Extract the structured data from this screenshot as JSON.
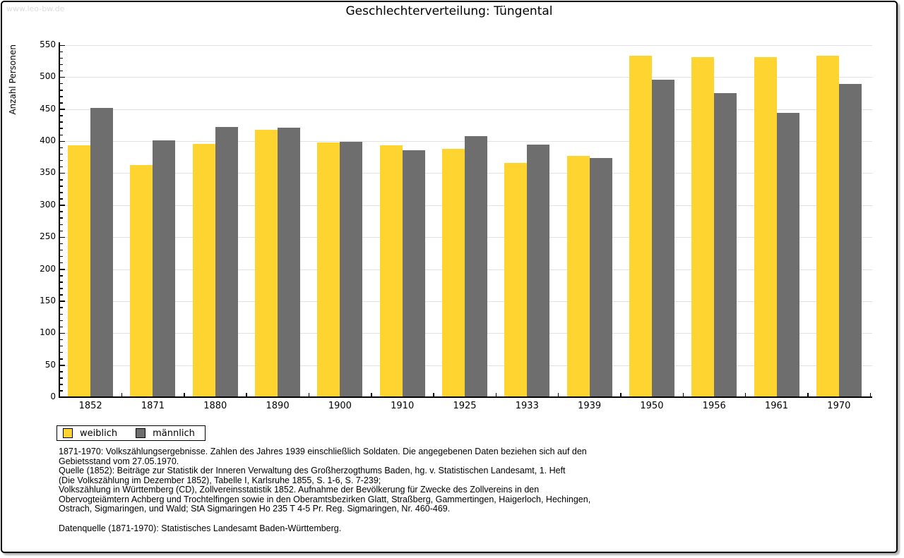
{
  "header": {
    "watermark": "www.leo-bw.de"
  },
  "chart_data": {
    "type": "bar",
    "title": "Geschlechterverteilung: Tüngental",
    "xlabel": "",
    "ylabel": "Anzahl Personen",
    "ylim": [
      0,
      550
    ],
    "y_tick_step": 50,
    "y_minor_tick_step": 10,
    "grid": true,
    "legend_position": "bottom-left",
    "categories": [
      "1852",
      "1871",
      "1880",
      "1890",
      "1900",
      "1910",
      "1925",
      "1933",
      "1939",
      "1950",
      "1956",
      "1961",
      "1970"
    ],
    "series": [
      {
        "name": "weiblich",
        "color": "#FDD430",
        "values": [
          393,
          363,
          396,
          418,
          398,
          393,
          388,
          366,
          377,
          533,
          531,
          531,
          534
        ]
      },
      {
        "name": "männlich",
        "color": "#6E6E6E",
        "values": [
          452,
          401,
          422,
          421,
          399,
          386,
          408,
          395,
          374,
          496,
          475,
          444,
          489
        ]
      }
    ]
  },
  "notes": {
    "source_note": "1871-1970: Volkszählungsergebnisse. Zahlen des Jahres 1939 einschließlich Soldaten. Die angegebenen Daten beziehen sich auf den\nGebietsstand vom 27.05.1970.\nQuelle (1852): Beiträge zur Statistik der Inneren Verwaltung des Großherzogthums Baden, hg. v. Statistischen Landesamt, 1. Heft\n(Die Volkszählung im Dezember 1852), Tabelle I, Karlsruhe 1855, S. 1-6, S. 7-239;\nVolkszählung in Württemberg (CD), Zollvereinsstatistik 1852. Aufnahme der Bevölkerung für Zwecke des Zollvereins in den\nObervogteiämtern Achberg und Trochtelfingen sowie in den Oberamtsbezirken Glatt, Straßberg, Gammertingen, Haigerloch, Hechingen,\nOstrach, Sigmaringen, und Wald; StA Sigmaringen Ho 235 T 4-5 Pr. Reg. Sigmaringen, Nr. 460-469.",
    "data_source": "Datenquelle (1871-1970): Statistisches Landesamt Baden-Württemberg."
  }
}
